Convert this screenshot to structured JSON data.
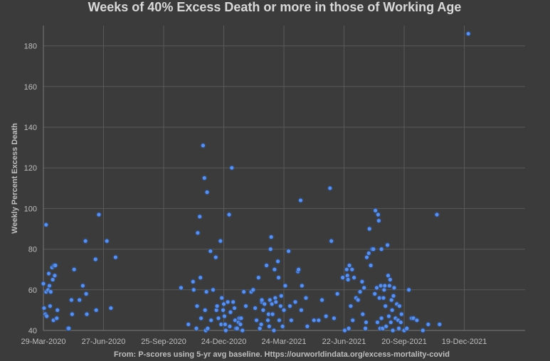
{
  "chart_data": {
    "type": "scatter",
    "title": "Weeks of 40% Excess Death or more in those of Working Age",
    "ylabel": "Weekly Percent Excess Death",
    "xlabel": "",
    "source": "From: P-scores using 5-yr avg baseline. Https://ourworldindata.org/excess-mortality-covid",
    "ylim": [
      40,
      190
    ],
    "yticks": [
      40,
      60,
      80,
      100,
      120,
      140,
      160,
      180
    ],
    "xlim": [
      "2020-03-29",
      "2022-03-20"
    ],
    "xticks": [
      "29-Mar-2020",
      "27-Jun-2020",
      "25-Sep-2020",
      "24-Dec-2020",
      "24-Mar-2021",
      "22-Jun-2021",
      "20-Sep-2021",
      "19-Dec-2021"
    ],
    "grid": true,
    "legend": "none",
    "point_color": "#5b8fe8",
    "points": [
      [
        "2020-03-29",
        63
      ],
      [
        "2020-03-30",
        51
      ],
      [
        "2020-04-01",
        48
      ],
      [
        "2020-04-02",
        92
      ],
      [
        "2020-04-02",
        59
      ],
      [
        "2020-04-03",
        47
      ],
      [
        "2020-04-05",
        60
      ],
      [
        "2020-04-06",
        68
      ],
      [
        "2020-04-07",
        62
      ],
      [
        "2020-04-08",
        52
      ],
      [
        "2020-04-09",
        59
      ],
      [
        "2020-04-11",
        71
      ],
      [
        "2020-04-12",
        65
      ],
      [
        "2020-04-13",
        45
      ],
      [
        "2020-04-14",
        72
      ],
      [
        "2020-04-15",
        67
      ],
      [
        "2020-04-16",
        72
      ],
      [
        "2020-04-18",
        46
      ],
      [
        "2020-04-19",
        50
      ],
      [
        "2020-05-05",
        41
      ],
      [
        "2020-05-06",
        41
      ],
      [
        "2020-05-10",
        55
      ],
      [
        "2020-05-11",
        48
      ],
      [
        "2020-05-14",
        70
      ],
      [
        "2020-05-22",
        55
      ],
      [
        "2020-05-27",
        62
      ],
      [
        "2020-05-31",
        84
      ],
      [
        "2020-06-01",
        58
      ],
      [
        "2020-06-02",
        48
      ],
      [
        "2020-06-15",
        75
      ],
      [
        "2020-06-16",
        50
      ],
      [
        "2020-06-20",
        97
      ],
      [
        "2020-07-02",
        84
      ],
      [
        "2020-07-08",
        51
      ],
      [
        "2020-07-15",
        76
      ],
      [
        "2020-10-21",
        61
      ],
      [
        "2020-11-01",
        43
      ],
      [
        "2020-11-08",
        64
      ],
      [
        "2020-11-09",
        60
      ],
      [
        "2020-11-13",
        41
      ],
      [
        "2020-11-14",
        52
      ],
      [
        "2020-11-15",
        88
      ],
      [
        "2020-11-18",
        96
      ],
      [
        "2020-11-19",
        66
      ],
      [
        "2020-11-20",
        46
      ],
      [
        "2020-11-23",
        131
      ],
      [
        "2020-11-25",
        115
      ],
      [
        "2020-11-26",
        50
      ],
      [
        "2020-11-27",
        40
      ],
      [
        "2020-11-28",
        59
      ],
      [
        "2020-11-29",
        108
      ],
      [
        "2020-11-30",
        41
      ],
      [
        "2020-12-04",
        79
      ],
      [
        "2020-12-05",
        45
      ],
      [
        "2020-12-08",
        60
      ],
      [
        "2020-12-12",
        76
      ],
      [
        "2020-12-13",
        50
      ],
      [
        "2020-12-14",
        52
      ],
      [
        "2020-12-16",
        46
      ],
      [
        "2020-12-19",
        84
      ],
      [
        "2020-12-20",
        43
      ],
      [
        "2020-12-21",
        56
      ],
      [
        "2020-12-23",
        50
      ],
      [
        "2020-12-24",
        53
      ],
      [
        "2020-12-25",
        47
      ],
      [
        "2020-12-26",
        43
      ],
      [
        "2020-12-27",
        40
      ],
      [
        "2020-12-30",
        54
      ],
      [
        "2021-01-01",
        97
      ],
      [
        "2021-01-02",
        42
      ],
      [
        "2021-01-03",
        49
      ],
      [
        "2021-01-05",
        120
      ],
      [
        "2021-01-07",
        54
      ],
      [
        "2021-01-09",
        51
      ],
      [
        "2021-01-10",
        45
      ],
      [
        "2021-01-11",
        41
      ],
      [
        "2021-01-13",
        41
      ],
      [
        "2021-01-15",
        44
      ],
      [
        "2021-01-16",
        46
      ],
      [
        "2021-01-18",
        43
      ],
      [
        "2021-01-19",
        46
      ],
      [
        "2021-01-21",
        40
      ],
      [
        "2021-01-23",
        59
      ],
      [
        "2021-01-26",
        52
      ],
      [
        "2021-02-03",
        59
      ],
      [
        "2021-02-06",
        60
      ],
      [
        "2021-02-09",
        51
      ],
      [
        "2021-02-11",
        45
      ],
      [
        "2021-02-14",
        66
      ],
      [
        "2021-02-16",
        41
      ],
      [
        "2021-02-18",
        43
      ],
      [
        "2021-02-19",
        54
      ],
      [
        "2021-02-19",
        55
      ],
      [
        "2021-02-21",
        50
      ],
      [
        "2021-02-23",
        53
      ],
      [
        "2021-02-26",
        72
      ],
      [
        "2021-02-28",
        45
      ],
      [
        "2021-03-01",
        48
      ],
      [
        "2021-03-02",
        42
      ],
      [
        "2021-03-03",
        55
      ],
      [
        "2021-03-04",
        80
      ],
      [
        "2021-03-05",
        86
      ],
      [
        "2021-03-06",
        53
      ],
      [
        "2021-03-07",
        48
      ],
      [
        "2021-03-09",
        40
      ],
      [
        "2021-03-10",
        70
      ],
      [
        "2021-03-11",
        56
      ],
      [
        "2021-03-12",
        54
      ],
      [
        "2021-03-15",
        74
      ],
      [
        "2021-03-16",
        66
      ],
      [
        "2021-03-17",
        45
      ],
      [
        "2021-03-19",
        52
      ],
      [
        "2021-03-20",
        57
      ],
      [
        "2021-03-22",
        42
      ],
      [
        "2021-03-24",
        50
      ],
      [
        "2021-03-26",
        62
      ],
      [
        "2021-03-31",
        79
      ],
      [
        "2021-04-02",
        52
      ],
      [
        "2021-04-04",
        45
      ],
      [
        "2021-04-10",
        54
      ],
      [
        "2021-04-14",
        69
      ],
      [
        "2021-04-15",
        70
      ],
      [
        "2021-04-18",
        104
      ],
      [
        "2021-04-19",
        50
      ],
      [
        "2021-04-20",
        62
      ],
      [
        "2021-04-26",
        56
      ],
      [
        "2021-04-28",
        42
      ],
      [
        "2021-05-08",
        45
      ],
      [
        "2021-05-15",
        45
      ],
      [
        "2021-05-20",
        55
      ],
      [
        "2021-05-26",
        47
      ],
      [
        "2021-06-01",
        110
      ],
      [
        "2021-06-03",
        84
      ],
      [
        "2021-06-07",
        46
      ],
      [
        "2021-06-12",
        58
      ],
      [
        "2021-06-20",
        66
      ],
      [
        "2021-06-23",
        40
      ],
      [
        "2021-06-26",
        70
      ],
      [
        "2021-06-27",
        67
      ],
      [
        "2021-06-28",
        65
      ],
      [
        "2021-06-29",
        41
      ],
      [
        "2021-06-30",
        72
      ],
      [
        "2021-07-02",
        52
      ],
      [
        "2021-07-04",
        70
      ],
      [
        "2021-07-05",
        45
      ],
      [
        "2021-07-07",
        66
      ],
      [
        "2021-07-10",
        56
      ],
      [
        "2021-07-13",
        55
      ],
      [
        "2021-07-16",
        59
      ],
      [
        "2021-07-19",
        64
      ],
      [
        "2021-07-20",
        48
      ],
      [
        "2021-07-22",
        61
      ],
      [
        "2021-07-24",
        41
      ],
      [
        "2021-07-25",
        44
      ],
      [
        "2021-07-26",
        76
      ],
      [
        "2021-07-29",
        78
      ],
      [
        "2021-07-30",
        90
      ],
      [
        "2021-08-01",
        72
      ],
      [
        "2021-08-03",
        80
      ],
      [
        "2021-08-05",
        80
      ],
      [
        "2021-08-07",
        58
      ],
      [
        "2021-08-08",
        99
      ],
      [
        "2021-08-10",
        61
      ],
      [
        "2021-08-11",
        44
      ],
      [
        "2021-08-12",
        97
      ],
      [
        "2021-08-13",
        94
      ],
      [
        "2021-08-14",
        56
      ],
      [
        "2021-08-15",
        41
      ],
      [
        "2021-08-16",
        62
      ],
      [
        "2021-08-17",
        80
      ],
      [
        "2021-08-17",
        46
      ],
      [
        "2021-08-19",
        41
      ],
      [
        "2021-08-20",
        56
      ],
      [
        "2021-08-21",
        60
      ],
      [
        "2021-08-22",
        62
      ],
      [
        "2021-08-23",
        52
      ],
      [
        "2021-08-24",
        42
      ],
      [
        "2021-08-26",
        82
      ],
      [
        "2021-08-27",
        67
      ],
      [
        "2021-08-28",
        47
      ],
      [
        "2021-08-29",
        62
      ],
      [
        "2021-08-30",
        65
      ],
      [
        "2021-08-31",
        44
      ],
      [
        "2021-09-01",
        55
      ],
      [
        "2021-09-02",
        50
      ],
      [
        "2021-09-03",
        40
      ],
      [
        "2021-09-04",
        57
      ],
      [
        "2021-09-05",
        61
      ],
      [
        "2021-09-07",
        46
      ],
      [
        "2021-09-09",
        53
      ],
      [
        "2021-09-11",
        45
      ],
      [
        "2021-09-12",
        41
      ],
      [
        "2021-09-13",
        52
      ],
      [
        "2021-09-15",
        44
      ],
      [
        "2021-09-16",
        48
      ],
      [
        "2021-09-20",
        40
      ],
      [
        "2021-09-24",
        41
      ],
      [
        "2021-09-27",
        60
      ],
      [
        "2021-10-01",
        46
      ],
      [
        "2021-10-04",
        46
      ],
      [
        "2021-10-09",
        45
      ],
      [
        "2021-10-18",
        40
      ],
      [
        "2021-10-26",
        43
      ],
      [
        "2021-11-08",
        97
      ],
      [
        "2021-11-12",
        43
      ],
      [
        "2021-12-25",
        186
      ]
    ]
  }
}
